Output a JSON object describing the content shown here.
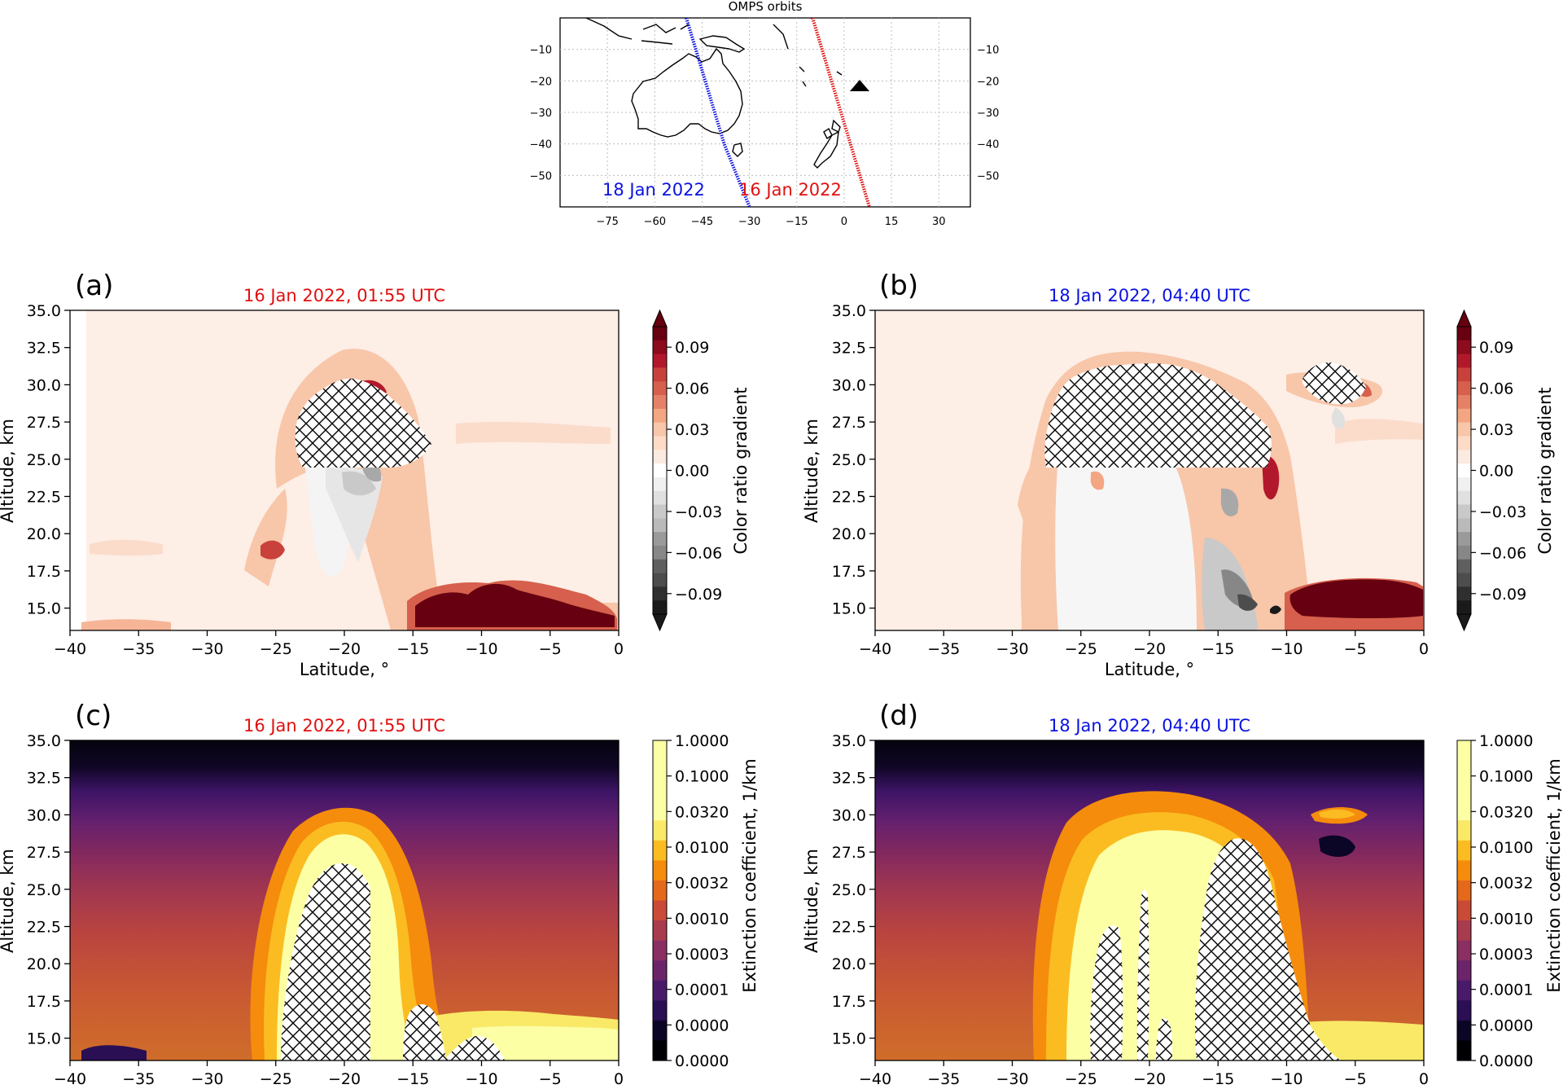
{
  "map": {
    "title": "OMPS orbits",
    "xticks": [
      -75,
      -60,
      -45,
      -30,
      -15,
      0,
      15,
      30
    ],
    "yticks": [
      -10,
      -20,
      -30,
      -40,
      -50
    ],
    "xlim": [
      -90,
      40
    ],
    "ylim": [
      -60,
      0
    ],
    "grid": true,
    "orbits": [
      {
        "label": "18 Jan 2022",
        "color": "#0a12e0"
      },
      {
        "label": "16 Jan 2022",
        "color": "#e01010"
      }
    ],
    "marker": "triangle"
  },
  "panels": [
    {
      "letter": "(a)",
      "title": "16 Jan 2022, 01:55 UTC",
      "title_color": "#e01010"
    },
    {
      "letter": "(b)",
      "title": "18 Jan 2022, 04:40 UTC",
      "title_color": "#0a12e0"
    },
    {
      "letter": "(c)",
      "title": "16 Jan 2022, 01:55 UTC",
      "title_color": "#e01010"
    },
    {
      "letter": "(d)",
      "title": "18 Jan 2022, 04:40 UTC",
      "title_color": "#0a12e0"
    }
  ],
  "axes": {
    "xlabel": "Latitude, °",
    "ylabel": "Altitude, km",
    "xticks": [
      "−40",
      "−35",
      "−30",
      "−25",
      "−20",
      "−15",
      "−10",
      "−5",
      "0"
    ],
    "yticks": [
      "35.0",
      "32.5",
      "30.0",
      "27.5",
      "25.0",
      "22.5",
      "20.0",
      "17.5",
      "15.0"
    ]
  },
  "colorbars": {
    "gradient": {
      "label": "Color ratio gradient",
      "ticks": [
        "0.09",
        "0.06",
        "0.03",
        "0.00",
        "−0.03",
        "−0.06",
        "−0.09"
      ],
      "colors": [
        "#670010",
        "#8c0b1c",
        "#b2182b",
        "#c8413b",
        "#d6604d",
        "#e48166",
        "#f4a582",
        "#f8c6a9",
        "#fddbc7",
        "#fbeae0",
        "#ffffff",
        "#f0f0f0",
        "#e0e0e0",
        "#c9c9c9",
        "#bababa",
        "#9a9a9a",
        "#878787",
        "#5f5f5f",
        "#4d4d4d",
        "#2f2f2f",
        "#1a1a1a"
      ]
    },
    "extinction": {
      "label": "Extinction coefficient, 1/km",
      "ticks": [
        "1.0000",
        "0.1000",
        "0.0320",
        "0.0100",
        "0.0032",
        "0.0010",
        "0.0003",
        "0.0001",
        "0.0000",
        "0.0000"
      ],
      "colors": [
        "#fcffa4",
        "#fcffa4",
        "#fcffa4",
        "#fcffa4",
        "#f9e967",
        "#fbbc21",
        "#f58c0c",
        "#e4691b",
        "#c94a37",
        "#a93b4f",
        "#8a2f61",
        "#6b2469",
        "#4a1a6a",
        "#2a0f54",
        "#0c0626",
        "#000004"
      ]
    }
  },
  "chart_data": [
    {
      "type": "line",
      "title": "OMPS orbits",
      "xlim": [
        -90,
        40
      ],
      "ylim": [
        -60,
        0
      ],
      "grid": true,
      "series": [
        {
          "name": "18 Jan 2022",
          "x": [
            -50,
            -47,
            -44,
            -41,
            -38,
            -34,
            -30
          ],
          "y": [
            0,
            -10,
            -20,
            -30,
            -40,
            -50,
            -60
          ]
        },
        {
          "name": "16 Jan 2022",
          "x": [
            -10,
            -7,
            -4,
            -1,
            2,
            5,
            8
          ],
          "y": [
            0,
            -10,
            -20,
            -30,
            -40,
            -50,
            -60
          ]
        }
      ],
      "marker": {
        "type": "triangle",
        "x": 5,
        "y": -20
      }
    },
    {
      "type": "heatmap",
      "panel": "(a)",
      "title": "16 Jan 2022, 01:55 UTC",
      "xlabel": "Latitude, °",
      "ylabel": "Altitude, km",
      "xlim": [
        -40,
        0
      ],
      "ylim": [
        13.5,
        35
      ]
    },
    {
      "type": "heatmap",
      "panel": "(b)",
      "title": "18 Jan 2022, 04:40 UTC",
      "xlabel": "Latitude, °",
      "ylabel": "Altitude, km",
      "xlim": [
        -40,
        0
      ],
      "ylim": [
        13.5,
        35
      ]
    },
    {
      "type": "heatmap",
      "panel": "(c)",
      "title": "16 Jan 2022, 01:55 UTC",
      "xlabel": "Latitude, °",
      "ylabel": "Altitude, km",
      "xlim": [
        -40,
        0
      ],
      "ylim": [
        13.5,
        35
      ]
    },
    {
      "type": "heatmap",
      "panel": "(d)",
      "title": "18 Jan 2022, 04:40 UTC",
      "xlabel": "Latitude, °",
      "ylabel": "Altitude, km",
      "xlim": [
        -40,
        0
      ],
      "ylim": [
        13.5,
        35
      ]
    }
  ]
}
